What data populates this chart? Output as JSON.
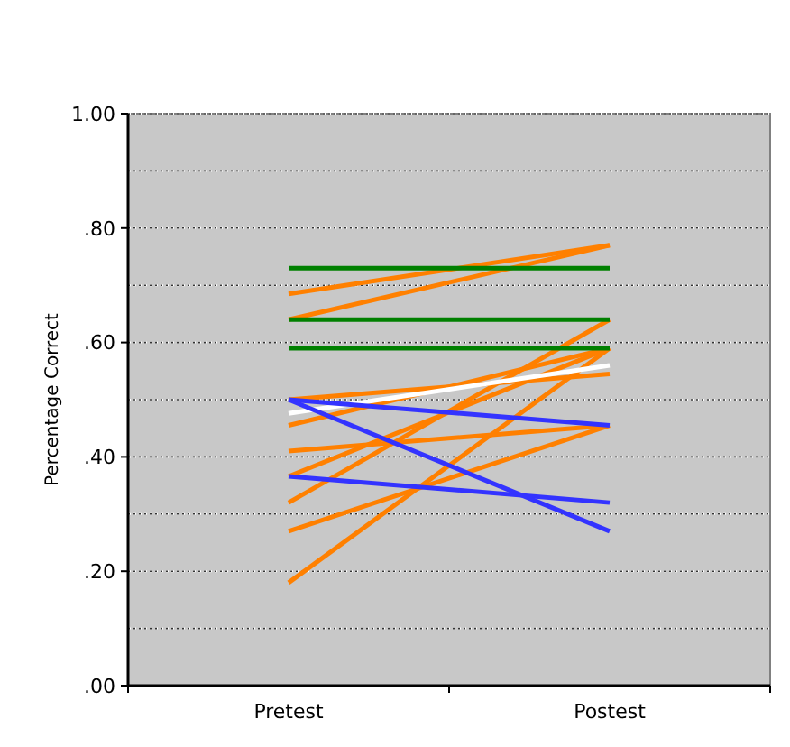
{
  "chart_data": {
    "type": "line",
    "ylabel": "Percentage Correct",
    "categories": [
      "Pretest",
      "Postest"
    ],
    "ylim": [
      0,
      1
    ],
    "yticks": [
      {
        "value": 0,
        "label": ".00"
      },
      {
        "value": 0.1,
        "label": null
      },
      {
        "value": 0.2,
        "label": ".20"
      },
      {
        "value": 0.3,
        "label": null
      },
      {
        "value": 0.4,
        "label": ".40"
      },
      {
        "value": 0.5,
        "label": null
      },
      {
        "value": 0.6,
        "label": ".60"
      },
      {
        "value": 0.7,
        "label": null
      },
      {
        "value": 0.8,
        "label": ".80"
      },
      {
        "value": 0.9,
        "label": null
      },
      {
        "value": 1,
        "label": "1.00"
      }
    ],
    "grid": "y",
    "marker": "none",
    "line_style": "solid",
    "series": [
      {
        "color": "#ff8000",
        "values": [
          0.685,
          0.77
        ]
      },
      {
        "color": "#ff8000",
        "values": [
          0.64,
          0.77
        ]
      },
      {
        "color": "#ff8000",
        "values": [
          0.5,
          0.545
        ]
      },
      {
        "color": "#ff8000",
        "values": [
          0.455,
          0.59
        ]
      },
      {
        "color": "#ff8000",
        "values": [
          0.41,
          0.455
        ]
      },
      {
        "color": "#ff8000",
        "values": [
          0.366,
          0.59
        ]
      },
      {
        "color": "#ff8000",
        "values": [
          0.32,
          0.64
        ]
      },
      {
        "color": "#ff8000",
        "values": [
          0.27,
          0.455
        ]
      },
      {
        "color": "#ff8000",
        "values": [
          0.18,
          0.59
        ]
      },
      {
        "color": "#008000",
        "values": [
          0.73,
          0.73
        ]
      },
      {
        "color": "#008000",
        "values": [
          0.64,
          0.64
        ]
      },
      {
        "color": "#008000",
        "values": [
          0.59,
          0.59
        ]
      },
      {
        "color": "#ffffff",
        "values": [
          0.476,
          0.56
        ]
      },
      {
        "color": "#3333ff",
        "values": [
          0.5,
          0.455
        ]
      },
      {
        "color": "#3333ff",
        "values": [
          0.366,
          0.32
        ]
      },
      {
        "color": "#3333ff",
        "values": [
          0.5,
          0.27
        ]
      }
    ]
  }
}
